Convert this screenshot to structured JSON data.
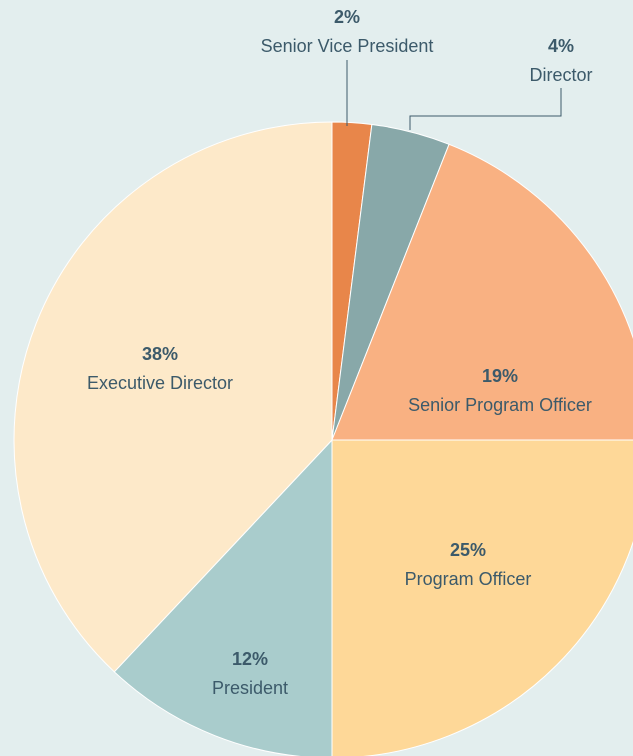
{
  "chart_data": {
    "type": "pie",
    "categories": [
      "Senior Vice President",
      "Director",
      "Senior Program Officer",
      "Program Officer",
      "President",
      "Executive Director"
    ],
    "values": [
      2,
      4,
      19,
      25,
      12,
      38
    ],
    "value_labels": [
      "2%",
      "4%",
      "19%",
      "25%",
      "12%",
      "38%"
    ],
    "colors": [
      "#e8864a",
      "#88a8a9",
      "#f9b182",
      "#fed898",
      "#a9cccc",
      "#fde9c9"
    ]
  }
}
